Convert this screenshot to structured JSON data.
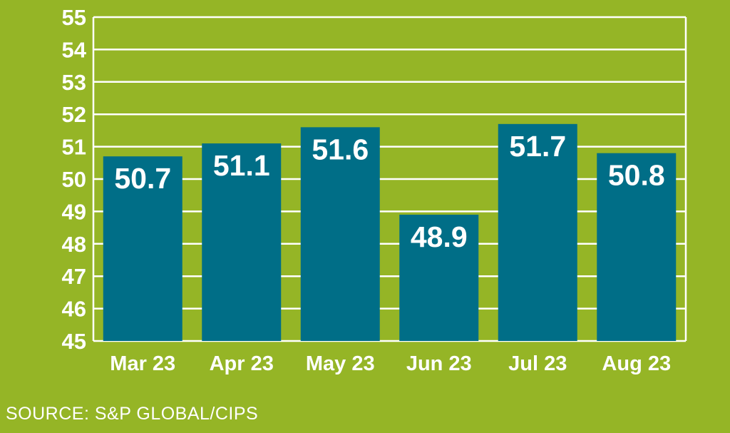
{
  "chart_data": {
    "type": "bar",
    "categories": [
      "Mar 23",
      "Apr 23",
      "May 23",
      "Jun 23",
      "Jul 23",
      "Aug 23"
    ],
    "values": [
      50.7,
      51.1,
      51.6,
      48.9,
      51.7,
      50.8
    ],
    "value_labels": [
      "50.7",
      "51.1",
      "51.6",
      "48.9",
      "51.7",
      "50.8"
    ],
    "ylim": [
      45,
      55
    ],
    "yticks": [
      "45",
      "46",
      "47",
      "48",
      "49",
      "50",
      "51",
      "52",
      "53",
      "54",
      "55"
    ],
    "grid": true,
    "title": "",
    "xlabel": "",
    "ylabel": ""
  },
  "source": "SOURCE: S&P GLOBAL/CIPS",
  "colors": {
    "background": "#95b526",
    "bar": "#006e87",
    "grid": "#ffffff",
    "text": "#ffffff"
  }
}
